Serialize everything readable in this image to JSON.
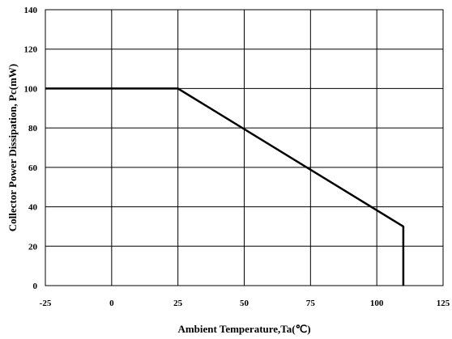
{
  "chart_data": {
    "type": "line",
    "title": "",
    "xlabel": "Ambient Temperature,Ta(℃)",
    "ylabel": "Collector Power Dissipation, Pc(mW)",
    "xlim": [
      -25,
      125
    ],
    "ylim": [
      0,
      140
    ],
    "xticks": [
      -25,
      0,
      25,
      50,
      75,
      100,
      125
    ],
    "yticks": [
      0,
      20,
      40,
      60,
      80,
      100,
      120,
      140
    ],
    "grid": true,
    "series": [
      {
        "x": [
          -25,
          25,
          110,
          110
        ],
        "y": [
          100,
          100,
          30,
          0
        ]
      }
    ]
  }
}
